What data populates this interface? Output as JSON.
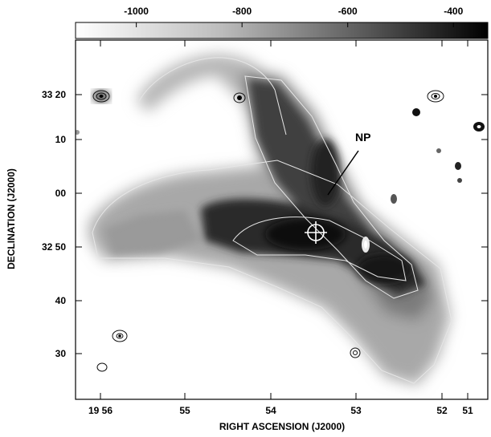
{
  "colorbar": {
    "ticks": [
      "-1000",
      "-800",
      "-600",
      "-400"
    ],
    "tick_values": [
      -1000,
      -800,
      -600,
      -400
    ],
    "range": [
      -1115,
      -335
    ]
  },
  "axes": {
    "xlabel": "RIGHT ASCENSION (J2000)",
    "ylabel": "DECLINATION (J2000)",
    "x_ticks": [
      "19 56",
      "55",
      "54",
      "53",
      "52",
      "51"
    ],
    "y_ticks": [
      "33 20",
      "10",
      "00",
      "32 50",
      "40",
      "30"
    ]
  },
  "annotation": {
    "label": "NP"
  },
  "colors": {
    "foreground": "#000000",
    "background": "#ffffff",
    "contour_light": "#e6e6e6",
    "contour_dark": "#333333"
  }
}
